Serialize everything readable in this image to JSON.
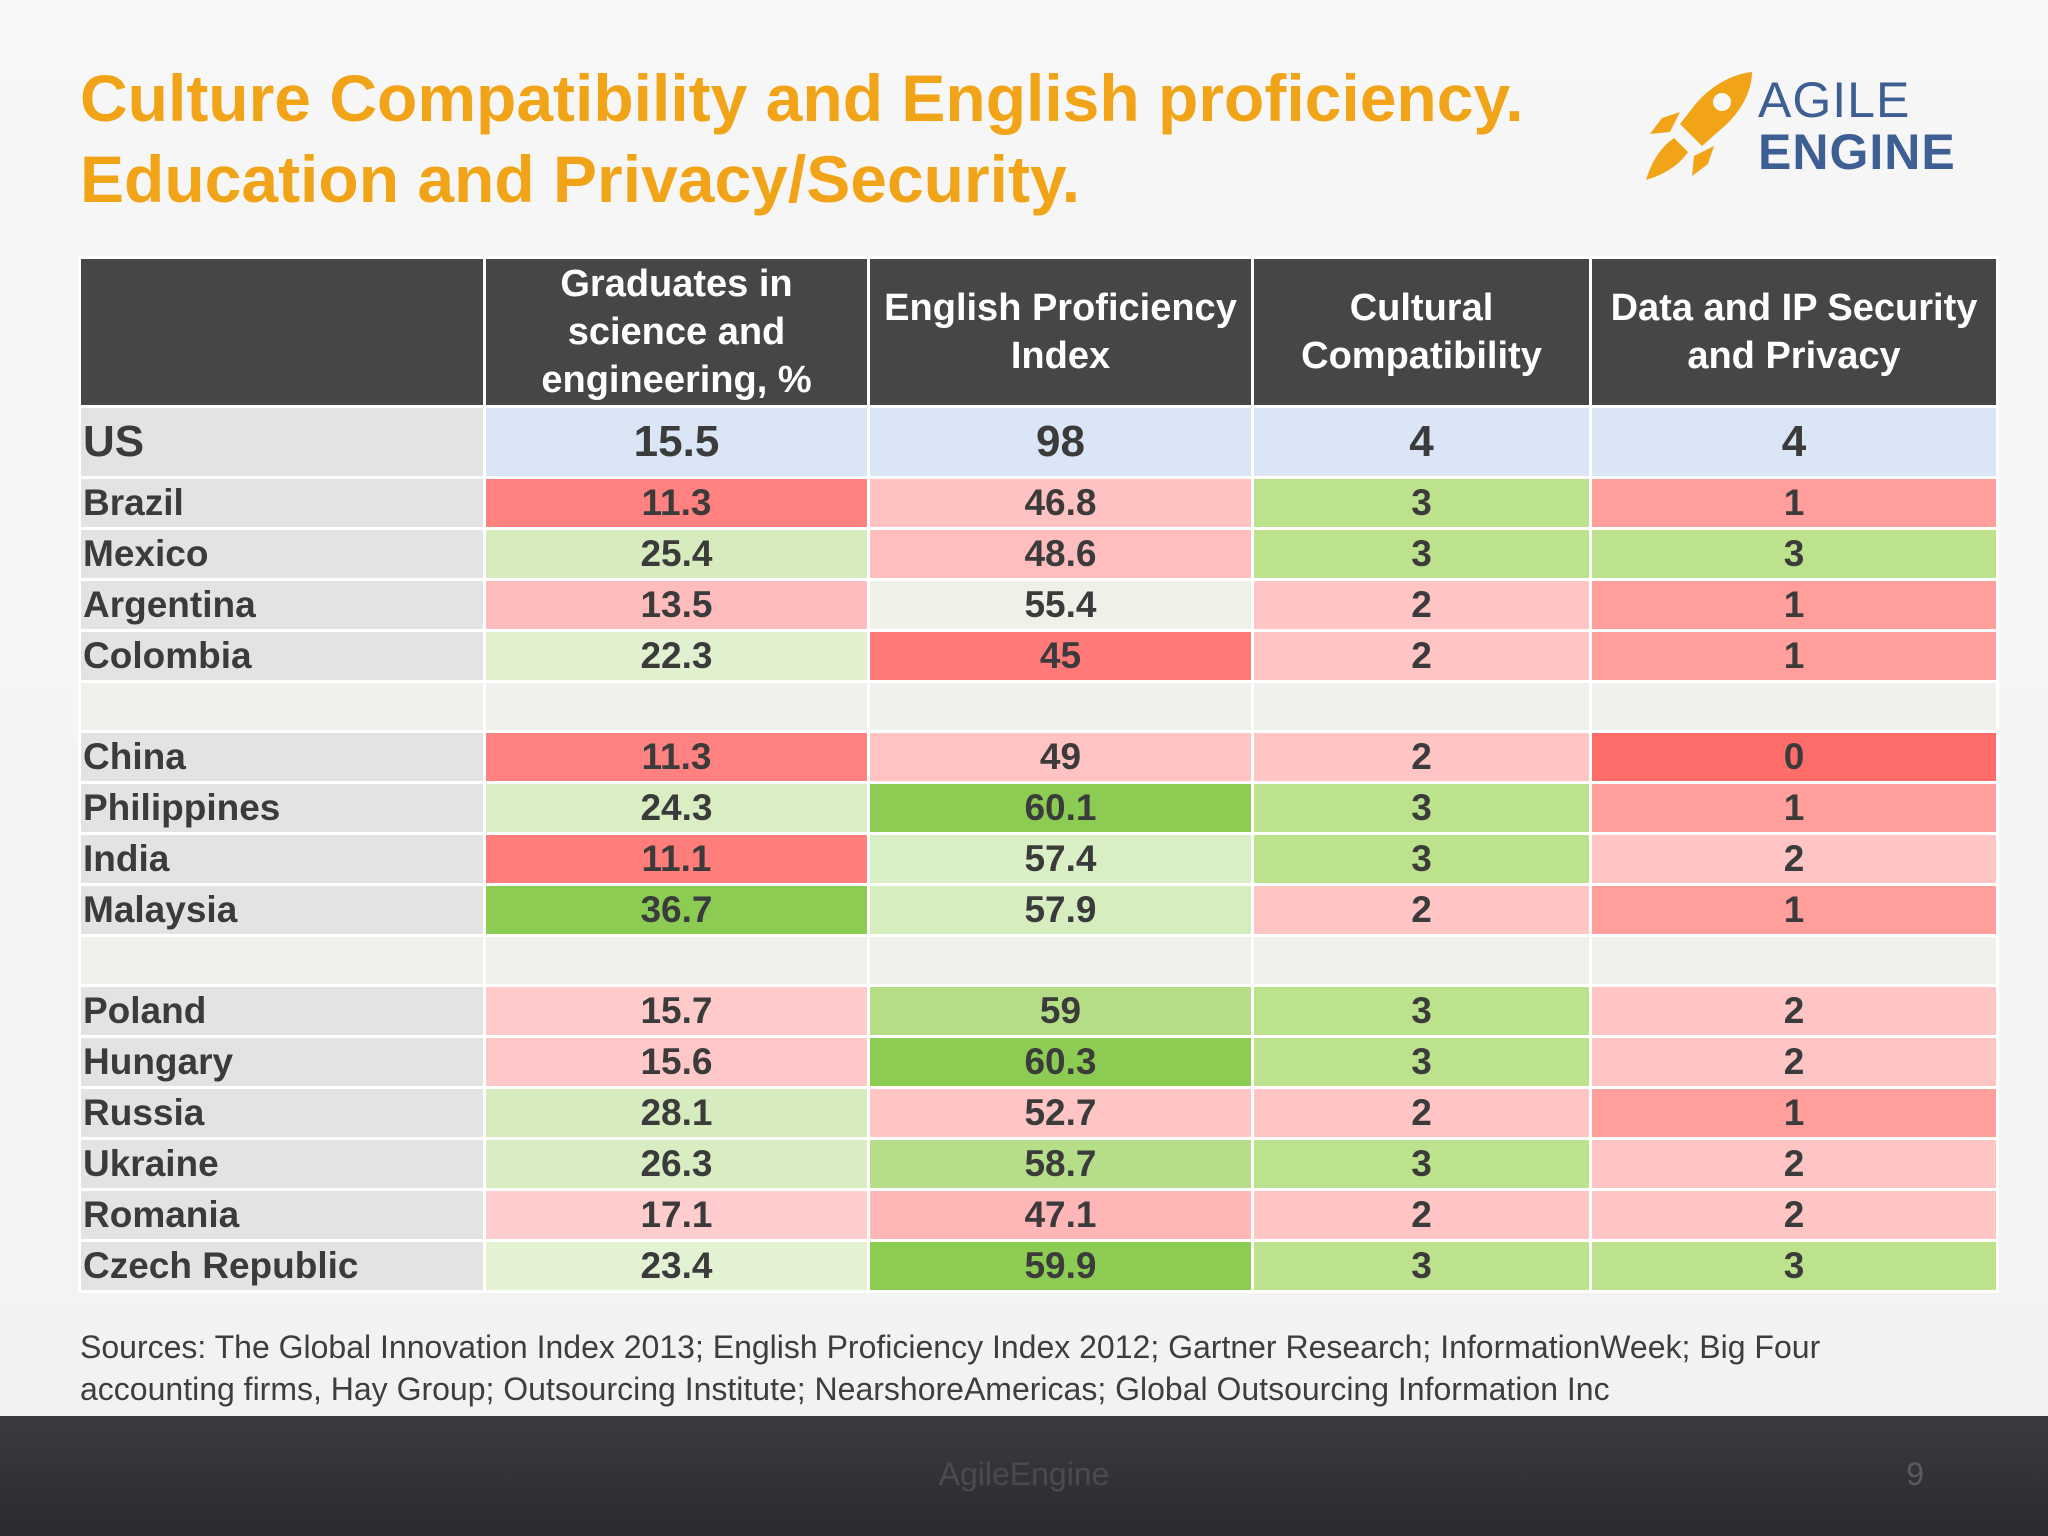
{
  "slide": {
    "title": "Culture Compatibility and English proficiency. Education and Privacy/Security.",
    "logo": {
      "line1": "AGILE",
      "line2": "ENGINE",
      "icon": "rocket-icon",
      "color": "#3d5f93",
      "icon_color": "#f2a418"
    },
    "table": {
      "headers": [
        "",
        "Graduates in science and engineering, %",
        "English Proficiency Index",
        "Cultural Compatibility",
        "Data and IP Security and Privacy"
      ],
      "rows": [
        {
          "country": "US",
          "values": [
            "15.5",
            "98",
            "4",
            "4"
          ],
          "colors": [
            "#dae5f6",
            "#dae5f6",
            "#dae5f6",
            "#dae5f6"
          ],
          "type": "reference"
        },
        {
          "country": "Brazil",
          "values": [
            "11.3",
            "46.8",
            "3",
            "1"
          ],
          "colors": [
            "#ff8280",
            "#ffc2c2",
            "#bde28d",
            "#ff9e9b"
          ]
        },
        {
          "country": "Mexico",
          "values": [
            "25.4",
            "48.6",
            "3",
            "3"
          ],
          "colors": [
            "#d6ecbe",
            "#ffbdbd",
            "#bde28d",
            "#bde28d"
          ]
        },
        {
          "country": "Argentina",
          "values": [
            "13.5",
            "55.4",
            "2",
            "1"
          ],
          "colors": [
            "#ffbcbc",
            "#edf1e8",
            "#ffc5c5",
            "#ff9e9b"
          ]
        },
        {
          "country": "Colombia",
          "values": [
            "22.3",
            "45",
            "2",
            "1"
          ],
          "colors": [
            "#e1f1d0",
            "#ff7a78",
            "#ffc5c5",
            "#ff9e9b"
          ]
        },
        {
          "type": "gap"
        },
        {
          "country": "China",
          "values": [
            "11.3",
            "49",
            "2",
            "0"
          ],
          "colors": [
            "#ff8280",
            "#ffc3c3",
            "#ffc5c5",
            "#ff6d6b"
          ]
        },
        {
          "country": "Philippines",
          "values": [
            "24.3",
            "60.1",
            "3",
            "1"
          ],
          "colors": [
            "#d9eec3",
            "#8ccc53",
            "#bde28d",
            "#ff9e9b"
          ]
        },
        {
          "country": "India",
          "values": [
            "11.1",
            "57.4",
            "3",
            "2"
          ],
          "colors": [
            "#ff7e7c",
            "#d9efc6",
            "#bde28d",
            "#ffc5c5"
          ]
        },
        {
          "country": "Malaysia",
          "values": [
            "36.7",
            "57.9",
            "2",
            "1"
          ],
          "colors": [
            "#8ccc53",
            "#d6edc0",
            "#ffc5c5",
            "#ff9e9b"
          ]
        },
        {
          "type": "gap"
        },
        {
          "country": "Poland",
          "values": [
            "15.7",
            "59",
            "3",
            "2"
          ],
          "colors": [
            "#ffcaca",
            "#b4dd86",
            "#bde28d",
            "#ffc5c5"
          ]
        },
        {
          "country": "Hungary",
          "values": [
            "15.6",
            "60.3",
            "3",
            "2"
          ],
          "colors": [
            "#ffc8c8",
            "#8ccc53",
            "#bde28d",
            "#ffc5c5"
          ]
        },
        {
          "country": "Russia",
          "values": [
            "28.1",
            "52.7",
            "2",
            "1"
          ],
          "colors": [
            "#d6ecbe",
            "#ffc5c5",
            "#ffc5c5",
            "#ff9e9b"
          ]
        },
        {
          "country": "Ukraine",
          "values": [
            "26.3",
            "58.7",
            "3",
            "2"
          ],
          "colors": [
            "#d8edc2",
            "#b6de88",
            "#bde28d",
            "#ffc5c5"
          ]
        },
        {
          "country": "Romania",
          "values": [
            "17.1",
            "47.1",
            "2",
            "2"
          ],
          "colors": [
            "#ffcdcd",
            "#ffb6b6",
            "#ffc5c5",
            "#ffc5c5"
          ]
        },
        {
          "country": "Czech Republic",
          "values": [
            "23.4",
            "59.9",
            "3",
            "3"
          ],
          "colors": [
            "#e4f2d4",
            "#8ccc53",
            "#bde28d",
            "#bde28d"
          ]
        }
      ]
    },
    "sources": "Sources: The Global Innovation Index 2013; English Proficiency Index 2012; Gartner Research; InformationWeek; Big Four accounting firms, Hay Group; Outsourcing Institute; NearshoreAmericas; Global Outsourcing Information Inc",
    "footer": {
      "brand": "AgileEngine",
      "page_number": "9"
    }
  }
}
